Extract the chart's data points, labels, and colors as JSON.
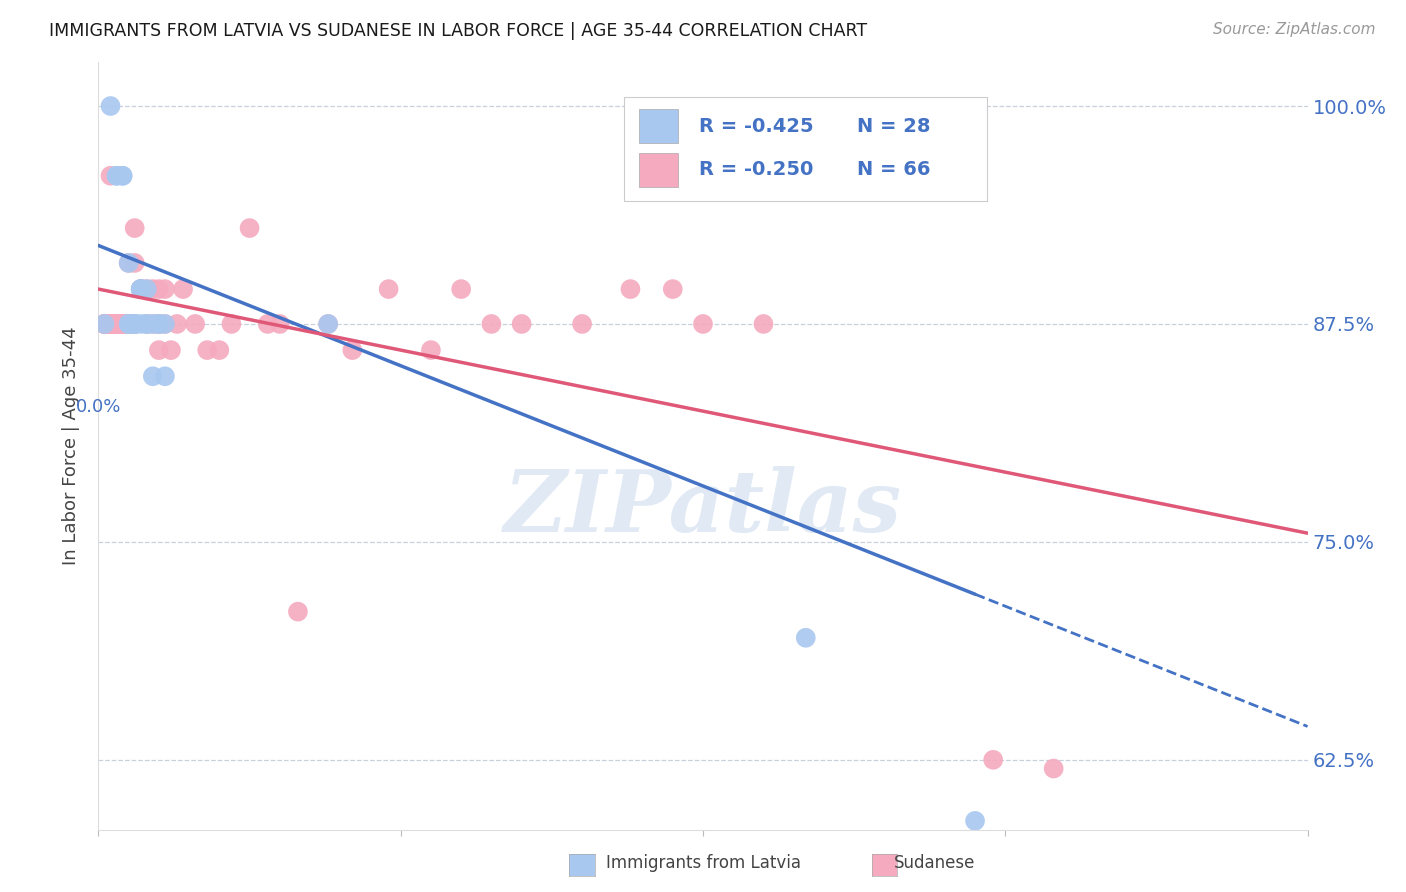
{
  "title": "IMMIGRANTS FROM LATVIA VS SUDANESE IN LABOR FORCE | AGE 35-44 CORRELATION CHART",
  "source": "Source: ZipAtlas.com",
  "ylabel": "In Labor Force | Age 35-44",
  "xlim": [
    0.0,
    0.2
  ],
  "ylim": [
    0.585,
    1.025
  ],
  "yticks": [
    0.625,
    0.75,
    0.875,
    1.0
  ],
  "ytick_labels": [
    "62.5%",
    "75.0%",
    "87.5%",
    "100.0%"
  ],
  "legend_r_latvia": "-0.425",
  "legend_n_latvia": "28",
  "legend_r_sudanese": "-0.250",
  "legend_n_sudanese": "66",
  "color_latvia": "#A8C8F0",
  "color_sudanese": "#F5AABF",
  "color_line_latvia": "#4472C4",
  "color_line_sudanese": "#E05878",
  "color_axis_label": "#4472C4",
  "color_grid": "#C8D0DC",
  "watermark": "ZIPatlas",
  "latvia_x": [
    0.001,
    0.002,
    0.003,
    0.003,
    0.004,
    0.004,
    0.005,
    0.005,
    0.005,
    0.006,
    0.006,
    0.006,
    0.007,
    0.007,
    0.007,
    0.007,
    0.008,
    0.008,
    0.008,
    0.009,
    0.009,
    0.01,
    0.01,
    0.011,
    0.011,
    0.038,
    0.117,
    0.145
  ],
  "latvia_y": [
    0.875,
    1.0,
    0.96,
    0.96,
    0.96,
    0.96,
    0.91,
    0.875,
    0.875,
    0.875,
    0.875,
    0.875,
    0.895,
    0.895,
    0.895,
    0.875,
    0.895,
    0.875,
    0.875,
    0.875,
    0.845,
    0.875,
    0.875,
    0.875,
    0.845,
    0.875,
    0.695,
    0.59
  ],
  "sudanese_x": [
    0.001,
    0.001,
    0.001,
    0.001,
    0.002,
    0.002,
    0.002,
    0.002,
    0.002,
    0.002,
    0.003,
    0.003,
    0.003,
    0.003,
    0.003,
    0.003,
    0.004,
    0.004,
    0.004,
    0.004,
    0.004,
    0.005,
    0.005,
    0.005,
    0.005,
    0.006,
    0.006,
    0.006,
    0.006,
    0.007,
    0.007,
    0.008,
    0.008,
    0.009,
    0.009,
    0.01,
    0.01,
    0.01,
    0.01,
    0.011,
    0.011,
    0.012,
    0.013,
    0.014,
    0.016,
    0.018,
    0.02,
    0.022,
    0.025,
    0.028,
    0.03,
    0.033,
    0.038,
    0.042,
    0.048,
    0.055,
    0.06,
    0.065,
    0.07,
    0.08,
    0.088,
    0.095,
    0.1,
    0.11,
    0.148,
    0.158
  ],
  "sudanese_y": [
    0.875,
    0.875,
    0.875,
    0.875,
    0.875,
    0.875,
    0.875,
    0.875,
    0.875,
    0.96,
    0.875,
    0.875,
    0.875,
    0.875,
    0.875,
    0.875,
    0.875,
    0.875,
    0.875,
    0.875,
    0.875,
    0.91,
    0.875,
    0.875,
    0.875,
    0.93,
    0.875,
    0.91,
    0.875,
    0.895,
    0.895,
    0.895,
    0.875,
    0.895,
    0.875,
    0.895,
    0.875,
    0.875,
    0.86,
    0.895,
    0.875,
    0.86,
    0.875,
    0.895,
    0.875,
    0.86,
    0.86,
    0.875,
    0.93,
    0.875,
    0.875,
    0.71,
    0.875,
    0.86,
    0.895,
    0.86,
    0.895,
    0.875,
    0.875,
    0.875,
    0.895,
    0.895,
    0.875,
    0.875,
    0.625,
    0.62
  ],
  "trendline_latvia_x0": 0.0,
  "trendline_latvia_x1": 0.145,
  "trendline_latvia_x_dash_end": 0.2,
  "trendline_sudanese_x0": 0.0,
  "trendline_sudanese_x1": 0.2,
  "trendline_latvia_y0": 0.92,
  "trendline_latvia_y1": 0.72,
  "trendline_sudanese_y0": 0.895,
  "trendline_sudanese_y1": 0.755
}
